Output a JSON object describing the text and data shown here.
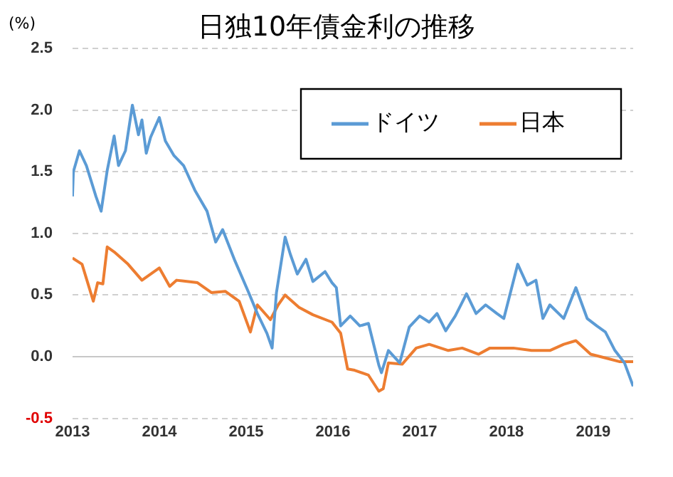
{
  "chart_data": {
    "type": "line",
    "title": "日独10年債金利の推移",
    "ylabel": "(%)",
    "xlim": [
      2013,
      2019.46
    ],
    "xticks": [
      2013,
      2014,
      2015,
      2016,
      2017,
      2018,
      2019
    ],
    "ylim": [
      -0.5,
      2.5
    ],
    "yticks": [
      {
        "value": -0.5,
        "label": "-0.5"
      },
      {
        "value": 0,
        "label": "0.0"
      },
      {
        "value": 0.5,
        "label": "0.5"
      },
      {
        "value": 1,
        "label": "1.0"
      },
      {
        "value": 1.5,
        "label": "1.5"
      },
      {
        "value": 2,
        "label": "2.0"
      },
      {
        "value": 2.5,
        "label": "2.5"
      }
    ],
    "grid": "y",
    "legend": "top right",
    "marker": "none",
    "line_style": "solid",
    "series": [
      {
        "name": "ドイツ",
        "color": "#5b9bd5",
        "x": [
          2013.0,
          2013.01,
          2013.08,
          2013.16,
          2013.27,
          2013.33,
          2013.4,
          2013.48,
          2013.53,
          2013.61,
          2013.69,
          2013.76,
          2013.8,
          2013.85,
          2013.9,
          2014.0,
          2014.07,
          2014.17,
          2014.28,
          2014.41,
          2014.55,
          2014.65,
          2014.73,
          2014.87,
          2015.03,
          2015.13,
          2015.24,
          2015.3,
          2015.35,
          2015.45,
          2015.51,
          2015.59,
          2015.69,
          2015.77,
          2015.91,
          2015.99,
          2016.04,
          2016.09,
          2016.2,
          2016.31,
          2016.41,
          2016.53,
          2016.56,
          2016.64,
          2016.77,
          2016.88,
          2017.0,
          2017.11,
          2017.2,
          2017.3,
          2017.41,
          2017.54,
          2017.65,
          2017.76,
          2017.89,
          2017.97,
          2018.13,
          2018.24,
          2018.34,
          2018.42,
          2018.5,
          2018.66,
          2018.8,
          2018.93,
          2019.04,
          2019.14,
          2019.25,
          2019.36,
          2019.46
        ],
        "values": [
          1.3,
          1.5,
          1.67,
          1.55,
          1.3,
          1.18,
          1.51,
          1.79,
          1.55,
          1.67,
          2.04,
          1.8,
          1.92,
          1.65,
          1.78,
          1.94,
          1.75,
          1.63,
          1.55,
          1.35,
          1.18,
          0.93,
          1.03,
          0.78,
          0.52,
          0.35,
          0.19,
          0.07,
          0.52,
          0.97,
          0.83,
          0.67,
          0.79,
          0.61,
          0.69,
          0.6,
          0.56,
          0.25,
          0.33,
          0.25,
          0.27,
          -0.07,
          -0.13,
          0.05,
          -0.05,
          0.24,
          0.33,
          0.28,
          0.35,
          0.21,
          0.33,
          0.51,
          0.35,
          0.42,
          0.35,
          0.31,
          0.75,
          0.58,
          0.62,
          0.31,
          0.42,
          0.31,
          0.56,
          0.31,
          0.25,
          0.2,
          0.05,
          -0.05,
          -0.24
        ]
      },
      {
        "name": "日本",
        "color": "#ed7d31",
        "x": [
          2013.0,
          2013.11,
          2013.24,
          2013.29,
          2013.35,
          2013.4,
          2013.48,
          2013.64,
          2013.8,
          2014.0,
          2014.12,
          2014.2,
          2014.44,
          2014.6,
          2014.76,
          2014.92,
          2015.05,
          2015.13,
          2015.28,
          2015.37,
          2015.45,
          2015.61,
          2015.77,
          2015.99,
          2016.09,
          2016.17,
          2016.25,
          2016.41,
          2016.53,
          2016.58,
          2016.64,
          2016.8,
          2016.96,
          2017.11,
          2017.33,
          2017.49,
          2017.68,
          2017.81,
          2018.08,
          2018.29,
          2018.5,
          2018.66,
          2018.8,
          2018.97,
          2019.14,
          2019.3,
          2019.46
        ],
        "values": [
          0.8,
          0.75,
          0.45,
          0.6,
          0.59,
          0.89,
          0.85,
          0.75,
          0.62,
          0.72,
          0.57,
          0.62,
          0.6,
          0.52,
          0.53,
          0.45,
          0.2,
          0.42,
          0.3,
          0.42,
          0.5,
          0.4,
          0.34,
          0.28,
          0.19,
          -0.1,
          -0.11,
          -0.15,
          -0.28,
          -0.26,
          -0.05,
          -0.06,
          0.07,
          0.1,
          0.05,
          0.07,
          0.02,
          0.07,
          0.07,
          0.05,
          0.05,
          0.1,
          0.13,
          0.02,
          -0.01,
          -0.04,
          -0.04
        ]
      }
    ]
  }
}
